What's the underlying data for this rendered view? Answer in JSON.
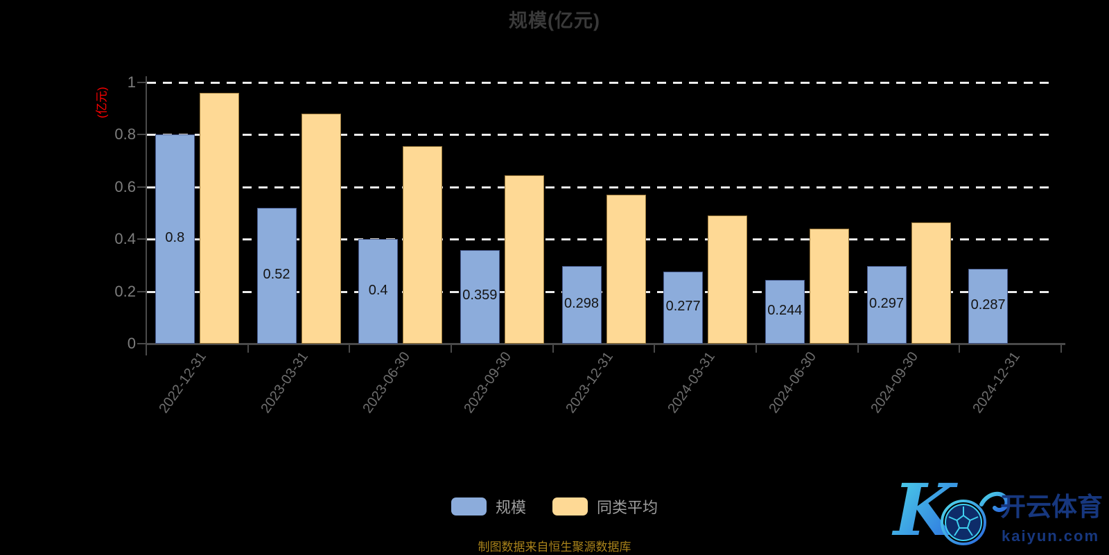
{
  "title": "规模(亿元)",
  "y_axis_name": "(亿元)",
  "source_note": "制图数据来自恒生聚源数据库",
  "colors": {
    "background": "#000000",
    "title_text": "#3a3a3a",
    "axis_line": "#4a4a4a",
    "axis_label": "#7d7d7d",
    "x_axis_label": "#6e6e6e",
    "gridline": "#ececec",
    "y_name_red": "#ff0000",
    "data_label": "#141414",
    "legend_text": "#9e9e9e",
    "note_gold": "#a8821a",
    "logo_navy": "#17377e",
    "logo_cyan": "#4fd9e9",
    "logo_blue": "#2a67de"
  },
  "legend": [
    {
      "label": "规模",
      "color": "#8cacdb"
    },
    {
      "label": "同类平均",
      "color": "#fed995"
    }
  ],
  "logo": {
    "letter": "K",
    "brand_cn": "开云体育",
    "brand_url": "kaiyun.com"
  },
  "chart_data": {
    "type": "bar",
    "title": "规模(亿元)",
    "ylabel": "(亿元)",
    "xlabel": "",
    "ylim": [
      0,
      1
    ],
    "yticks": [
      "1",
      "0.8",
      "0.6",
      "0.4",
      "0.2",
      "0"
    ],
    "ytick_values": [
      1,
      0.8,
      0.6,
      0.4,
      0.2,
      0
    ],
    "grid": "horizontal-dashed-white",
    "legend_position": "bottom-center",
    "categories": [
      "2022-12-31",
      "2023-03-31",
      "2023-06-30",
      "2023-09-30",
      "2023-12-31",
      "2024-03-31",
      "2024-06-30",
      "2024-09-30",
      "2024-12-31"
    ],
    "series": [
      {
        "name": "规模",
        "color": "#8cacdb",
        "border_color": "#46598c",
        "values": [
          0.8,
          0.52,
          0.4,
          0.359,
          0.298,
          0.277,
          0.244,
          0.297,
          0.287
        ],
        "data_labels": [
          "0.8",
          "0.52",
          "0.4",
          "0.359",
          "0.298",
          "0.277",
          "0.244",
          "0.297",
          "0.287"
        ]
      },
      {
        "name": "同类平均",
        "color": "#fed995",
        "border_color": "#9c7a3c",
        "values": [
          0.96,
          0.88,
          0.755,
          0.645,
          0.57,
          0.49,
          0.44,
          0.465,
          null
        ],
        "data_labels": []
      }
    ]
  }
}
